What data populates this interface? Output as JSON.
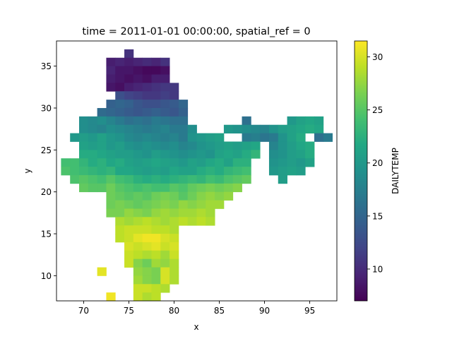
{
  "chart_data": {
    "type": "heatmap",
    "title": "time = 2011-01-01 00:00:00, spatial_ref = 0",
    "xlabel": "x",
    "ylabel": "y",
    "xlim": [
      67,
      98
    ],
    "ylim": [
      7,
      38
    ],
    "x_ticks": [
      70,
      75,
      80,
      85,
      90,
      95
    ],
    "y_ticks": [
      10,
      15,
      20,
      25,
      30,
      35
    ],
    "colorbar": {
      "label": "DAILYTEMP",
      "range": [
        7,
        31.5
      ],
      "ticks": [
        10,
        15,
        20,
        25,
        30
      ],
      "colormap": "viridis"
    },
    "grid": false,
    "cell_size": 1,
    "cells": [
      {
        "y": 36.5,
        "xs": [
          75
        ],
        "v": [
          10.5
        ]
      },
      {
        "y": 35.5,
        "xs": [
          73,
          74,
          75,
          76,
          77,
          78,
          79
        ],
        "v": [
          9.0,
          9.5,
          9.0,
          9.5,
          10.0,
          9.5,
          10.5
        ]
      },
      {
        "y": 34.5,
        "xs": [
          73,
          74,
          75,
          76,
          77,
          78,
          79
        ],
        "v": [
          9.5,
          8.5,
          8.5,
          8.0,
          7.5,
          7.5,
          8.0
        ]
      },
      {
        "y": 33.5,
        "xs": [
          73,
          74,
          75,
          76,
          77,
          78,
          79
        ],
        "v": [
          9.0,
          8.5,
          8.0,
          8.5,
          8.0,
          9.0,
          9.0
        ]
      },
      {
        "y": 32.5,
        "xs": [
          73,
          74,
          75,
          76,
          77,
          78,
          79,
          80
        ],
        "v": [
          8.5,
          8.0,
          9.0,
          9.5,
          10.0,
          10.5,
          11.0,
          11.0
        ]
      },
      {
        "y": 31.5,
        "xs": [
          74,
          75,
          76,
          77,
          78,
          79,
          80
        ],
        "v": [
          13.0,
          12.0,
          11.5,
          11.0,
          11.0,
          11.5,
          11.0
        ]
      },
      {
        "y": 30.5,
        "xs": [
          73,
          74,
          75,
          76,
          77,
          78,
          79,
          80,
          81
        ],
        "v": [
          14.5,
          15.0,
          14.5,
          13.5,
          13.0,
          13.0,
          13.5,
          14.0,
          15.0
        ]
      },
      {
        "y": 29.5,
        "xs": [
          72,
          73,
          74,
          75,
          76,
          77,
          78,
          79,
          80,
          81
        ],
        "v": [
          15.5,
          15.0,
          14.5,
          14.0,
          13.5,
          14.0,
          14.5,
          14.0,
          13.5,
          14.5
        ]
      },
      {
        "y": 28.5,
        "xs": [
          70,
          71,
          72,
          73,
          74,
          75,
          76,
          77,
          78,
          79,
          80,
          81,
          88,
          93,
          94,
          95,
          96
        ],
        "v": [
          19.0,
          18.5,
          19.0,
          18.0,
          17.0,
          16.0,
          16.5,
          16.0,
          17.0,
          16.5,
          16.0,
          16.0,
          16.0,
          20.0,
          21.0,
          21.5,
          21.0
        ]
      },
      {
        "y": 27.5,
        "xs": [
          70,
          71,
          72,
          73,
          74,
          75,
          76,
          77,
          78,
          79,
          80,
          81,
          82,
          86,
          87,
          88,
          89,
          90,
          91,
          92,
          93,
          94,
          95,
          96
        ],
        "v": [
          19.0,
          18.5,
          18.0,
          19.0,
          18.5,
          18.0,
          17.5,
          17.0,
          17.5,
          18.0,
          17.0,
          17.0,
          19.0,
          20.0,
          19.5,
          19.0,
          18.5,
          18.0,
          19.5,
          20.5,
          21.0,
          21.5,
          22.0,
          21.5
        ]
      },
      {
        "y": 26.5,
        "xs": [
          69,
          70,
          71,
          72,
          73,
          74,
          75,
          76,
          77,
          78,
          79,
          80,
          81,
          82,
          83,
          84,
          85,
          88,
          89,
          90,
          91,
          92,
          93,
          94,
          96,
          97
        ],
        "v": [
          20.0,
          20.5,
          20.0,
          21.0,
          20.0,
          19.5,
          18.5,
          18.0,
          18.5,
          18.0,
          17.5,
          18.0,
          17.0,
          19.5,
          20.0,
          20.5,
          21.0,
          17.0,
          17.5,
          16.5,
          17.0,
          19.5,
          21.0,
          22.0,
          16.0,
          17.0
        ]
      },
      {
        "y": 25.5,
        "xs": [
          70,
          71,
          72,
          73,
          74,
          75,
          76,
          77,
          78,
          79,
          80,
          81,
          82,
          83,
          84,
          85,
          86,
          87,
          88,
          89,
          91,
          92,
          93,
          94,
          95
        ],
        "v": [
          21.0,
          20.5,
          21.0,
          20.0,
          20.5,
          19.5,
          19.0,
          19.5,
          19.0,
          18.5,
          19.0,
          18.0,
          18.5,
          19.5,
          20.0,
          20.5,
          21.0,
          20.5,
          21.0,
          21.5,
          18.0,
          19.5,
          20.5,
          21.5,
          22.0
        ]
      },
      {
        "y": 24.5,
        "xs": [
          70,
          71,
          72,
          73,
          74,
          75,
          76,
          77,
          78,
          79,
          80,
          81,
          82,
          83,
          84,
          85,
          86,
          87,
          88,
          89,
          91,
          92,
          93,
          94,
          95
        ],
        "v": [
          22.0,
          22.0,
          21.5,
          21.0,
          20.5,
          20.5,
          20.0,
          19.5,
          20.5,
          20.0,
          19.5,
          19.0,
          19.5,
          20.0,
          19.5,
          21.0,
          21.5,
          21.0,
          22.0,
          23.0,
          19.0,
          19.5,
          20.5,
          21.0,
          22.0
        ]
      },
      {
        "y": 23.5,
        "xs": [
          68,
          69,
          70,
          71,
          72,
          73,
          74,
          75,
          76,
          77,
          78,
          79,
          80,
          81,
          82,
          83,
          84,
          85,
          86,
          87,
          88,
          91,
          92,
          93,
          94,
          95
        ],
        "v": [
          24.0,
          24.0,
          23.0,
          22.0,
          22.5,
          21.5,
          22.0,
          21.0,
          20.5,
          21.0,
          21.5,
          21.0,
          20.5,
          20.0,
          21.0,
          20.5,
          21.5,
          22.0,
          21.0,
          22.5,
          22.5,
          19.5,
          20.0,
          20.5,
          20.0,
          21.0
        ]
      },
      {
        "y": 22.5,
        "xs": [
          68,
          69,
          70,
          71,
          72,
          73,
          74,
          75,
          76,
          77,
          78,
          79,
          80,
          81,
          82,
          83,
          84,
          85,
          86,
          87,
          88,
          91,
          92,
          93,
          94
        ],
        "v": [
          24.5,
          24.0,
          23.5,
          23.0,
          22.5,
          23.0,
          21.5,
          21.5,
          21.0,
          20.5,
          21.0,
          20.5,
          21.5,
          21.0,
          21.0,
          22.0,
          22.5,
          22.0,
          23.0,
          23.5,
          24.0,
          20.0,
          20.5,
          21.0,
          20.5
        ]
      },
      {
        "y": 21.5,
        "xs": [
          69,
          70,
          71,
          72,
          73,
          74,
          75,
          76,
          77,
          78,
          79,
          80,
          81,
          82,
          83,
          84,
          85,
          86,
          87,
          88,
          92
        ],
        "v": [
          24.5,
          25.0,
          24.5,
          24.0,
          25.0,
          24.0,
          23.5,
          22.5,
          22.0,
          22.5,
          22.0,
          22.5,
          23.0,
          23.5,
          23.0,
          24.0,
          23.5,
          24.5,
          25.0,
          25.5,
          20.5
        ]
      },
      {
        "y": 20.5,
        "xs": [
          70,
          71,
          72,
          73,
          74,
          75,
          76,
          77,
          78,
          79,
          80,
          81,
          82,
          83,
          84,
          85,
          86,
          87
        ],
        "v": [
          25.5,
          25.0,
          25.0,
          26.0,
          25.0,
          24.5,
          24.0,
          24.5,
          24.0,
          24.0,
          25.0,
          24.5,
          25.5,
          26.0,
          26.5,
          26.0,
          26.5,
          27.0
        ]
      },
      {
        "y": 19.5,
        "xs": [
          73,
          74,
          75,
          76,
          77,
          78,
          79,
          80,
          81,
          82,
          83,
          84,
          85,
          86
        ],
        "v": [
          26.0,
          25.5,
          25.0,
          25.5,
          25.0,
          26.0,
          26.5,
          26.0,
          25.0,
          26.0,
          27.0,
          27.5,
          27.0,
          27.5
        ]
      },
      {
        "y": 18.5,
        "xs": [
          73,
          74,
          75,
          76,
          77,
          78,
          79,
          80,
          81,
          82,
          83,
          84,
          85
        ],
        "v": [
          26.0,
          26.5,
          26.0,
          25.5,
          26.0,
          26.5,
          27.0,
          26.5,
          27.5,
          27.0,
          27.5,
          28.0,
          28.0
        ]
      },
      {
        "y": 17.5,
        "xs": [
          73,
          74,
          75,
          76,
          77,
          78,
          79,
          80,
          81,
          82,
          83,
          84
        ],
        "v": [
          26.5,
          26.5,
          27.5,
          27.0,
          26.5,
          27.5,
          28.0,
          27.5,
          28.0,
          28.0,
          28.5,
          28.0
        ]
      },
      {
        "y": 16.5,
        "xs": [
          74,
          75,
          76,
          77,
          78,
          79,
          80,
          81,
          82,
          83,
          84
        ],
        "v": [
          28.5,
          28.0,
          28.5,
          29.0,
          28.5,
          28.0,
          28.5,
          29.0,
          28.5,
          29.0,
          28.5
        ]
      },
      {
        "y": 15.5,
        "xs": [
          74,
          75,
          76,
          77,
          78,
          79,
          80
        ],
        "v": [
          29.0,
          29.5,
          29.5,
          29.5,
          29.0,
          29.0,
          28.5
        ]
      },
      {
        "y": 14.5,
        "xs": [
          74,
          75,
          76,
          77,
          78,
          79,
          80
        ],
        "v": [
          29.0,
          29.5,
          30.5,
          31.0,
          31.0,
          30.0,
          29.5
        ]
      },
      {
        "y": 13.5,
        "xs": [
          75,
          76,
          77,
          78,
          79,
          80
        ],
        "v": [
          30.0,
          29.5,
          30.0,
          30.5,
          29.5,
          30.0
        ]
      },
      {
        "y": 12.5,
        "xs": [
          75,
          76,
          77,
          78,
          79,
          80
        ],
        "v": [
          29.5,
          29.0,
          28.5,
          29.0,
          28.0,
          29.5
        ]
      },
      {
        "y": 11.5,
        "xs": [
          75,
          76,
          77,
          78,
          79,
          80
        ],
        "v": [
          29.5,
          27.0,
          26.0,
          28.0,
          27.5,
          28.5
        ]
      },
      {
        "y": 10.5,
        "xs": [
          72,
          76,
          77,
          78,
          79,
          80
        ],
        "v": [
          30.5,
          27.5,
          27.0,
          26.5,
          30.0,
          28.5
        ]
      },
      {
        "y": 9.5,
        "xs": [
          76,
          77,
          78,
          79,
          80
        ],
        "v": [
          28.0,
          27.0,
          26.5,
          30.0,
          28.5
        ]
      },
      {
        "y": 8.5,
        "xs": [
          76,
          77,
          78,
          79
        ],
        "v": [
          29.5,
          29.5,
          29.0,
          28.5
        ]
      },
      {
        "y": 7.5,
        "xs": [
          73,
          76,
          77,
          78
        ],
        "v": [
          31.0,
          29.5,
          28.5,
          29.0
        ]
      }
    ]
  }
}
